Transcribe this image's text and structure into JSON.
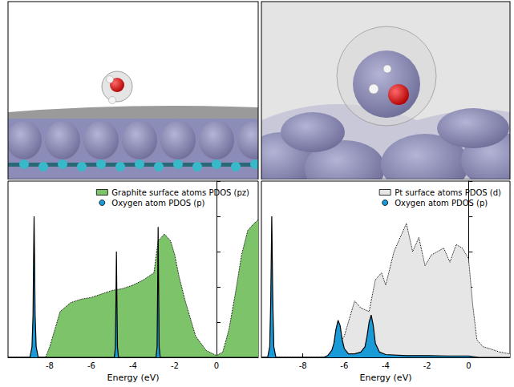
{
  "chart_data": [
    {
      "type": "line",
      "xlabel": "Energy (eV)",
      "xlim": [
        -10,
        2
      ],
      "xticks": [
        -8,
        -6,
        -4,
        -2,
        0
      ],
      "ylim": [
        0,
        5
      ],
      "yticks": [
        0,
        1,
        2,
        3,
        4,
        5
      ],
      "tick_labels": "x",
      "grid": false,
      "legend": "upper right",
      "series": [
        {
          "name": "Graphite surface atoms PDOS (pz)",
          "color": "#7cc36a",
          "line_style": "dotted",
          "marker": "square",
          "x": [
            -10,
            -8.2,
            -8,
            -7.8,
            -7.5,
            -7,
            -6.5,
            -6,
            -5.5,
            -5,
            -4.5,
            -4,
            -3.5,
            -3,
            -2.8,
            -2.5,
            -2.2,
            -2,
            -1.8,
            -1.5,
            -1.2,
            -1,
            -0.5,
            0,
            0.3,
            0.6,
            0.9,
            1.2,
            1.5,
            1.8,
            2
          ],
          "values": [
            0,
            0,
            0.3,
            0.7,
            1.3,
            1.55,
            1.65,
            1.7,
            1.8,
            1.9,
            1.95,
            2.05,
            2.2,
            2.4,
            3.3,
            3.5,
            3.3,
            2.9,
            2.3,
            1.6,
            1.0,
            0.6,
            0.2,
            0.05,
            0.15,
            0.8,
            1.8,
            2.9,
            3.6,
            3.8,
            3.9
          ]
        },
        {
          "name": "Oxygen atom PDOS (p)",
          "color": "#1a9ad6",
          "line_style": "solid",
          "marker": "circle",
          "x": [
            -10,
            -8.95,
            -8.85,
            -8.8,
            -8.77,
            -8.75,
            -8.73,
            -8.7,
            -8.65,
            -8.55,
            -5.0,
            -4.9,
            -4.85,
            -4.82,
            -4.8,
            -4.78,
            -4.75,
            -4.7,
            -4.6,
            -3.0,
            -2.9,
            -2.85,
            -2.82,
            -2.8,
            -2.78,
            -2.75,
            -2.7,
            -2.6,
            2
          ],
          "values": [
            0,
            0,
            0.3,
            1.2,
            3.0,
            4.0,
            3.0,
            1.2,
            0.3,
            0,
            0,
            0,
            0.3,
            1.8,
            3.0,
            1.8,
            0.3,
            0,
            0,
            0,
            0,
            0.3,
            2.2,
            3.7,
            2.2,
            0.3,
            0,
            0,
            0
          ]
        }
      ]
    },
    {
      "type": "line",
      "xlabel": "Energy (eV)",
      "xlim": [
        -10,
        2
      ],
      "xticks": [
        -8,
        -6,
        -4,
        -2,
        0
      ],
      "ylim": [
        0,
        5
      ],
      "yticks": [
        0,
        1,
        2,
        3,
        4,
        5
      ],
      "tick_labels": "x",
      "grid": false,
      "legend": "upper right",
      "series": [
        {
          "name": "Pt surface atoms PDOS (d)",
          "color": "#e6e6e6",
          "line_style": "dotted",
          "marker": "square",
          "x": [
            -10,
            -6.8,
            -6.5,
            -6,
            -5.5,
            -5.2,
            -4.8,
            -4.5,
            -4.2,
            -4,
            -3.6,
            -3.3,
            -3,
            -2.7,
            -2.4,
            -2.1,
            -1.8,
            -1.5,
            -1.2,
            -0.9,
            -0.6,
            -0.3,
            0,
            0.2,
            0.4,
            0.7,
            1,
            1.5,
            2
          ],
          "values": [
            0,
            0,
            0.2,
            0.6,
            1.6,
            1.4,
            1.3,
            2.2,
            2.4,
            2.05,
            3.0,
            3.4,
            3.8,
            3.0,
            3.4,
            2.6,
            2.9,
            3.0,
            3.1,
            2.7,
            3.2,
            3.1,
            2.8,
            1.5,
            0.5,
            0.3,
            0.25,
            0.15,
            0.1
          ]
        },
        {
          "name": "Oxygen atom PDOS (p)",
          "color": "#1a9ad6",
          "line_style": "solid",
          "marker": "circle",
          "x": [
            -10,
            -9.7,
            -9.6,
            -9.55,
            -9.5,
            -9.45,
            -9.4,
            -9.3,
            -7,
            -6.8,
            -6.6,
            -6.5,
            -6.4,
            -6.3,
            -6.2,
            -6.1,
            -6.0,
            -5.8,
            -5.5,
            -5.2,
            -5.0,
            -4.9,
            -4.8,
            -4.7,
            -4.6,
            -4.5,
            -4.3,
            -4,
            -3,
            -2,
            -1,
            0,
            0.5,
            2
          ],
          "values": [
            0,
            0,
            0.3,
            1.6,
            4.0,
            1.6,
            0.3,
            0,
            0,
            0.05,
            0.2,
            0.4,
            0.8,
            1.05,
            0.9,
            0.5,
            0.25,
            0.1,
            0.1,
            0.15,
            0.3,
            0.6,
            1.0,
            1.2,
            0.9,
            0.4,
            0.15,
            0.08,
            0.05,
            0.05,
            0.04,
            0.04,
            0,
            0
          ]
        }
      ]
    }
  ]
}
